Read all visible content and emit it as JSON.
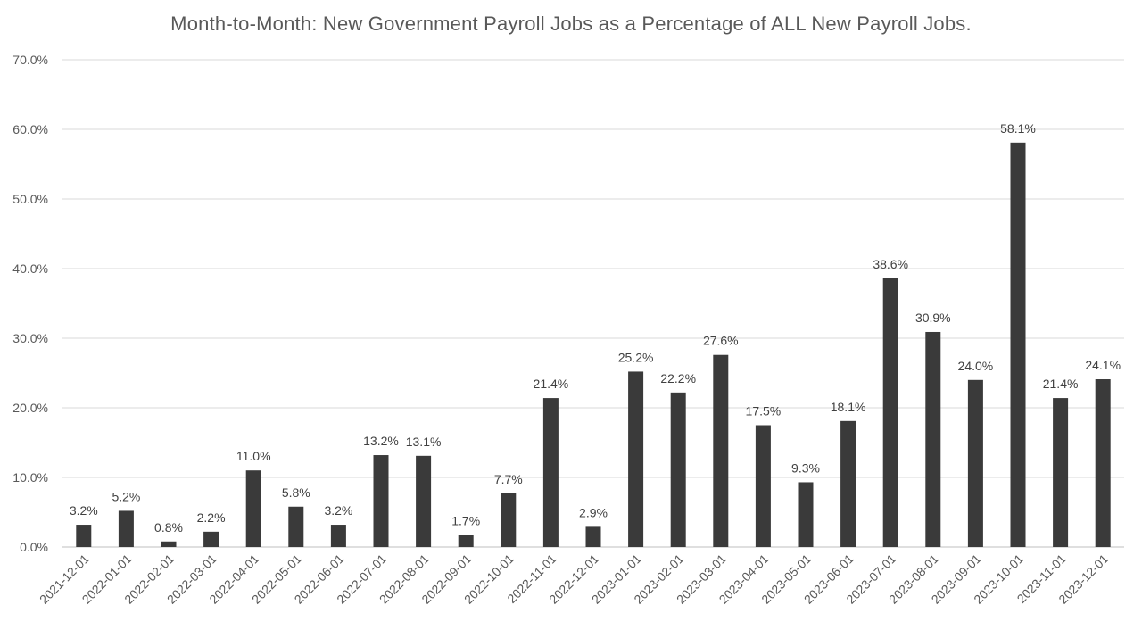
{
  "chart_data": {
    "type": "bar",
    "title": "Month-to-Month: New Government Payroll Jobs as a Percentage of ALL New Payroll Jobs.",
    "xlabel": "",
    "ylabel": "",
    "ylim": [
      0,
      70
    ],
    "yticks": [
      0,
      10,
      20,
      30,
      40,
      50,
      60,
      70
    ],
    "ytick_labels": [
      "0.0%",
      "10.0%",
      "20.0%",
      "30.0%",
      "40.0%",
      "50.0%",
      "60.0%",
      "70.0%"
    ],
    "grid": true,
    "legend": "none",
    "bar_color": "#3a3a3a",
    "categories": [
      "2021-12-01",
      "2022-01-01",
      "2022-02-01",
      "2022-03-01",
      "2022-04-01",
      "2022-05-01",
      "2022-06-01",
      "2022-07-01",
      "2022-08-01",
      "2022-09-01",
      "2022-10-01",
      "2022-11-01",
      "2022-12-01",
      "2023-01-01",
      "2023-02-01",
      "2023-03-01",
      "2023-04-01",
      "2023-05-01",
      "2023-06-01",
      "2023-07-01",
      "2023-08-01",
      "2023-09-01",
      "2023-10-01",
      "2023-11-01",
      "2023-12-01"
    ],
    "values": [
      3.2,
      5.2,
      0.8,
      2.2,
      11.0,
      5.8,
      3.2,
      13.2,
      13.1,
      1.7,
      7.7,
      21.4,
      2.9,
      25.2,
      22.2,
      27.6,
      17.5,
      9.3,
      18.1,
      38.6,
      30.9,
      24.0,
      58.1,
      21.4,
      24.1
    ],
    "data_labels": [
      "3.2%",
      "5.2%",
      "0.8%",
      "2.2%",
      "11.0%",
      "5.8%",
      "3.2%",
      "13.2%",
      "13.1%",
      "1.7%",
      "7.7%",
      "21.4%",
      "2.9%",
      "25.2%",
      "22.2%",
      "27.6%",
      "17.5%",
      "9.3%",
      "18.1%",
      "38.6%",
      "30.9%",
      "24.0%",
      "58.1%",
      "21.4%",
      "24.1%"
    ]
  }
}
